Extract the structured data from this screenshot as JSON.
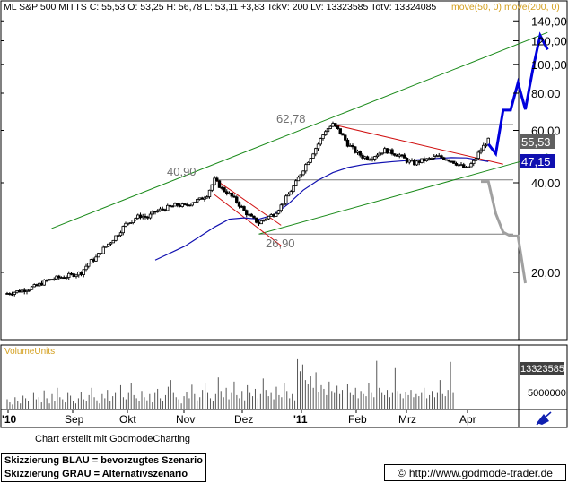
{
  "header": {
    "text": "ML S&P 500 MITTS C: 55,53 O: 53,25 H: 56,78 L: 53,11 +3,83 TckV: 200 LV: 13323585 TotV: 13324085",
    "ma_label": "move(50, 0)  move(200, 0)"
  },
  "chart_data": [
    {
      "type": "candlestick",
      "title": "ML S&P 500 MITTS",
      "scale": "log",
      "y_ticks": [
        "140,00",
        "120,00",
        "100,00",
        "80,00",
        "60,00",
        "40,00",
        "20,00"
      ],
      "x_ticks": [
        "'10",
        "Sep",
        "Okt",
        "Nov",
        "Dez",
        "'11",
        "Feb",
        "Mrz",
        "Apr"
      ],
      "last_close": "55,53",
      "ma_value": "47,15",
      "annotations": [
        "62,78",
        "40,90",
        "26,90"
      ],
      "price_series": [
        [
          0,
          17.0
        ],
        [
          2,
          17.4
        ],
        [
          4,
          18.0
        ],
        [
          5,
          18.6
        ],
        [
          6,
          19.0
        ],
        [
          8,
          19.4
        ],
        [
          10,
          20.0
        ],
        [
          11,
          21.5
        ],
        [
          12,
          22.4
        ],
        [
          13,
          24.0
        ],
        [
          14,
          25.4
        ],
        [
          15,
          27.0
        ],
        [
          16,
          29.0
        ],
        [
          17,
          30.2
        ],
        [
          18,
          31.0
        ],
        [
          19,
          30.6
        ],
        [
          20,
          32.0
        ],
        [
          21,
          32.6
        ],
        [
          22,
          33.2
        ],
        [
          23,
          33.7
        ],
        [
          24,
          33.4
        ],
        [
          25,
          34.5
        ],
        [
          26,
          35.1
        ],
        [
          27,
          36.5
        ],
        [
          28,
          40.9
        ],
        [
          29,
          38.2
        ],
        [
          30,
          36.6
        ],
        [
          31,
          34.6
        ],
        [
          32,
          32.2
        ],
        [
          33,
          30.5
        ],
        [
          34,
          29.3
        ],
        [
          35,
          30.5
        ],
        [
          36,
          31.4
        ],
        [
          37,
          33.5
        ],
        [
          38,
          36.5
        ],
        [
          39,
          40.0
        ],
        [
          40,
          44.5
        ],
        [
          41,
          49.0
        ],
        [
          42,
          54.0
        ],
        [
          43,
          60.0
        ],
        [
          44,
          62.78
        ],
        [
          45,
          59.0
        ],
        [
          46,
          54.0
        ],
        [
          47,
          51.0
        ],
        [
          48,
          49.0
        ],
        [
          49,
          48.4
        ],
        [
          50,
          50.0
        ],
        [
          51,
          51.5
        ],
        [
          52,
          50.5
        ],
        [
          53,
          49.5
        ],
        [
          54,
          47.5
        ],
        [
          55,
          46.5
        ],
        [
          56,
          47.5
        ],
        [
          57,
          48.0
        ],
        [
          58,
          49.0
        ],
        [
          59,
          48.5
        ],
        [
          60,
          47.5
        ],
        [
          61,
          46.0
        ],
        [
          62,
          44.5
        ],
        [
          63,
          47.0
        ],
        [
          64,
          51.8
        ],
        [
          65,
          55.53
        ]
      ],
      "ma50_series": [
        [
          20,
          22.0
        ],
        [
          24,
          24.5
        ],
        [
          28,
          28.4
        ],
        [
          30,
          30.2
        ],
        [
          32,
          30.5
        ],
        [
          34,
          30.2
        ],
        [
          36,
          31.2
        ],
        [
          38,
          34.0
        ],
        [
          40,
          37.8
        ],
        [
          42,
          40.8
        ],
        [
          44,
          43.3
        ],
        [
          46,
          45.0
        ],
        [
          48,
          46.0
        ],
        [
          50,
          46.6
        ],
        [
          52,
          47.1
        ],
        [
          54,
          47.5
        ],
        [
          56,
          47.9
        ],
        [
          58,
          48.3
        ],
        [
          60,
          48.6
        ],
        [
          62,
          48.5
        ],
        [
          64,
          47.6
        ],
        [
          65,
          47.15
        ]
      ],
      "support_levels": [
        62.78,
        40.9,
        26.9
      ],
      "trendlines": [
        {
          "name": "upper-channel",
          "from": [
            6,
            28.1
          ],
          "to": [
            73,
            128.0
          ]
        },
        {
          "name": "lower-channel",
          "from": [
            34,
            26.9
          ],
          "to": [
            73,
            50.0
          ]
        },
        {
          "name": "downtrend",
          "from": [
            44,
            62.78
          ],
          "to": [
            67,
            46.2
          ]
        },
        {
          "name": "nov-flag-top",
          "from": [
            28,
            41.2
          ],
          "to": [
            37,
            28.8
          ]
        },
        {
          "name": "nov-flag-bottom",
          "from": [
            28,
            36.5
          ],
          "to": [
            37,
            24.6
          ]
        }
      ],
      "scenario_blue": [
        [
          65,
          54.0
        ],
        [
          66,
          50.1
        ],
        [
          67,
          70.2
        ],
        [
          68,
          70.2
        ],
        [
          69,
          86.6
        ],
        [
          70,
          70.6
        ],
        [
          71,
          96.0
        ],
        [
          72,
          125.0
        ],
        [
          73,
          112.0
        ]
      ],
      "scenario_gray": [
        [
          64,
          40.4
        ],
        [
          65,
          40.4
        ],
        [
          66,
          31.5
        ],
        [
          67,
          27.3
        ],
        [
          68,
          26.5
        ],
        [
          69,
          26.5
        ],
        [
          70,
          18.4
        ]
      ]
    },
    {
      "type": "bar",
      "title": "VolumeUnits",
      "y_ticks": [
        "5000000"
      ],
      "last_volume": "13323585",
      "values": [
        0.18,
        0.12,
        0.08,
        0.22,
        0.15,
        0.1,
        0.25,
        0.2,
        0.14,
        0.09,
        0.3,
        0.18,
        0.22,
        0.12,
        0.35,
        0.2,
        0.1,
        0.28,
        0.15,
        0.4,
        0.22,
        0.18,
        0.12,
        0.3,
        0.25,
        0.15,
        0.1,
        0.2,
        0.32,
        0.18,
        0.14,
        0.26,
        0.4,
        0.22,
        0.16,
        0.1,
        0.28,
        0.2,
        0.36,
        0.14,
        0.24,
        0.3,
        0.12,
        0.45,
        0.22,
        0.18,
        0.3,
        0.5,
        0.26,
        0.2,
        0.14,
        0.34,
        0.22,
        0.16,
        0.28,
        0.12,
        0.3,
        0.38,
        0.2,
        0.15,
        0.26,
        0.42,
        0.55,
        0.3,
        0.22,
        0.18,
        0.1,
        0.24,
        0.32,
        0.2,
        0.46,
        0.28,
        0.16,
        0.22,
        0.36,
        0.5,
        0.3,
        0.2,
        0.14,
        0.28,
        0.6,
        0.34,
        0.22,
        0.4,
        0.18,
        0.3,
        0.52,
        0.26,
        0.2,
        0.34,
        0.16,
        0.45,
        0.3,
        0.24,
        0.38,
        0.2,
        0.28,
        0.58,
        0.36,
        0.24,
        0.3,
        0.18,
        0.42,
        0.26,
        0.22,
        0.5,
        0.34,
        0.2,
        0.28,
        0.16,
        0.95,
        0.72,
        0.85,
        0.55,
        0.48,
        0.62,
        0.4,
        0.7,
        0.32,
        0.45,
        0.38,
        0.26,
        0.52,
        0.34,
        0.3,
        0.44,
        0.28,
        0.36,
        0.22,
        0.48,
        0.3,
        0.26,
        0.4,
        0.2,
        0.34,
        0.28,
        0.24,
        0.5,
        0.3,
        0.22,
        0.92,
        0.4,
        0.3,
        0.26,
        0.36,
        0.22,
        0.3,
        0.78,
        0.34,
        0.28,
        0.2,
        0.32,
        0.26,
        0.36,
        0.22,
        0.28,
        0.24,
        0.3,
        0.4,
        0.2,
        0.26,
        0.34,
        0.22,
        0.3,
        0.55,
        0.28,
        0.24,
        0.36,
        0.9,
        0.3
      ]
    }
  ],
  "footer": {
    "credit": "Chart erstellt mit GodmodeCharting",
    "scenario_blue": "Skizzierung BLAU = bevorzugtes Szenario",
    "scenario_gray": "Skizzierung GRAU = Alternativszenario",
    "url": "http://www.godmode-trader.de",
    "copyright": "©"
  },
  "colors": {
    "up_candle": "#ffffff",
    "down_candle": "#000000",
    "ma50": "#1010b0",
    "channel": "#1a8a1a",
    "downtrend": "#d01010",
    "scenario_blue": "#0000dd",
    "scenario_gray": "#a0a0a0",
    "ma_label": "#d4a020",
    "volume_label": "#d4a020",
    "last_close_bg": "#606060",
    "ma_value_bg": "#1010b0"
  }
}
